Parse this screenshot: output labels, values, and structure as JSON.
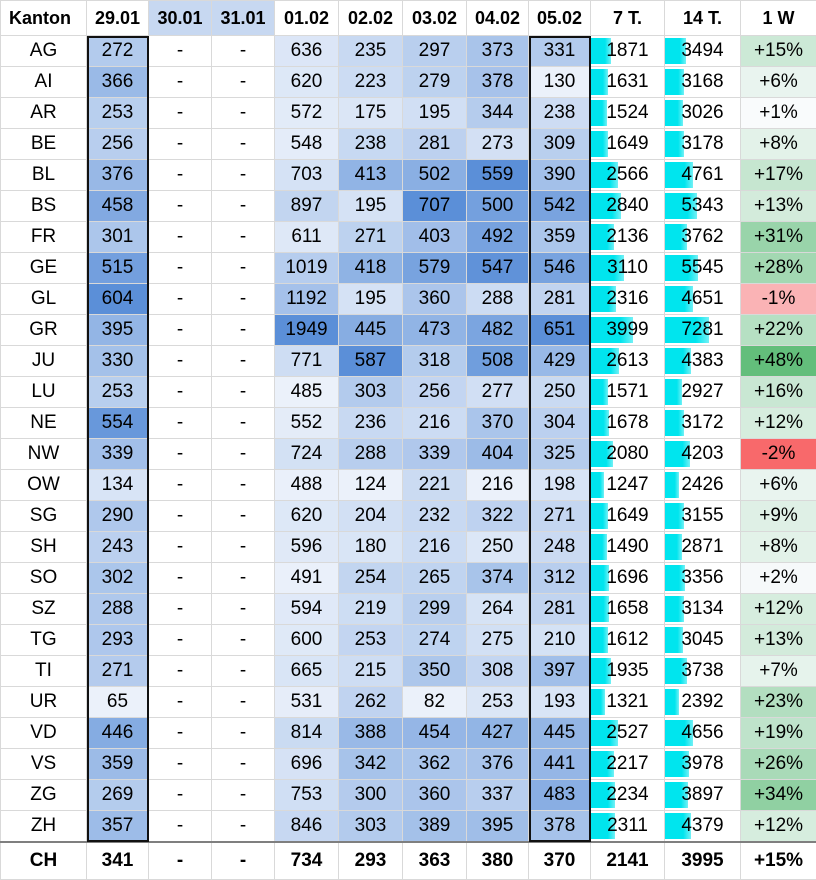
{
  "chart_data": {
    "type": "table",
    "columns": [
      "Kanton",
      "29.01",
      "30.01",
      "31.01",
      "01.02",
      "02.02",
      "03.02",
      "04.02",
      "05.02",
      "7 T.",
      "14 T.",
      "1 W"
    ],
    "rows": [
      [
        "AG",
        272,
        "-",
        "-",
        636,
        235,
        297,
        373,
        331,
        1871,
        3494,
        "+15%"
      ],
      [
        "AI",
        366,
        "-",
        "-",
        620,
        223,
        279,
        378,
        130,
        1631,
        3168,
        "+6%"
      ],
      [
        "AR",
        253,
        "-",
        "-",
        572,
        175,
        195,
        344,
        238,
        1524,
        3026,
        "+1%"
      ],
      [
        "BE",
        256,
        "-",
        "-",
        548,
        238,
        281,
        273,
        309,
        1649,
        3178,
        "+8%"
      ],
      [
        "BL",
        376,
        "-",
        "-",
        703,
        413,
        502,
        559,
        390,
        2566,
        4761,
        "+17%"
      ],
      [
        "BS",
        458,
        "-",
        "-",
        897,
        195,
        707,
        500,
        542,
        2840,
        5343,
        "+13%"
      ],
      [
        "FR",
        301,
        "-",
        "-",
        611,
        271,
        403,
        492,
        359,
        2136,
        3762,
        "+31%"
      ],
      [
        "GE",
        515,
        "-",
        "-",
        1019,
        418,
        579,
        547,
        546,
        3110,
        5545,
        "+28%"
      ],
      [
        "GL",
        604,
        "-",
        "-",
        1192,
        195,
        360,
        288,
        281,
        2316,
        4651,
        "-1%"
      ],
      [
        "GR",
        395,
        "-",
        "-",
        1949,
        445,
        473,
        482,
        651,
        3999,
        7281,
        "+22%"
      ],
      [
        "JU",
        330,
        "-",
        "-",
        771,
        587,
        318,
        508,
        429,
        2613,
        4383,
        "+48%"
      ],
      [
        "LU",
        253,
        "-",
        "-",
        485,
        303,
        256,
        277,
        250,
        1571,
        2927,
        "+16%"
      ],
      [
        "NE",
        554,
        "-",
        "-",
        552,
        236,
        216,
        370,
        304,
        1678,
        3172,
        "+12%"
      ],
      [
        "NW",
        339,
        "-",
        "-",
        724,
        288,
        339,
        404,
        325,
        2080,
        4203,
        "-2%"
      ],
      [
        "OW",
        134,
        "-",
        "-",
        488,
        124,
        221,
        216,
        198,
        1247,
        2426,
        "+6%"
      ],
      [
        "SG",
        290,
        "-",
        "-",
        620,
        204,
        232,
        322,
        271,
        1649,
        3155,
        "+9%"
      ],
      [
        "SH",
        243,
        "-",
        "-",
        596,
        180,
        216,
        250,
        248,
        1490,
        2871,
        "+8%"
      ],
      [
        "SO",
        302,
        "-",
        "-",
        491,
        254,
        265,
        374,
        312,
        1696,
        3356,
        "+2%"
      ],
      [
        "SZ",
        288,
        "-",
        "-",
        594,
        219,
        299,
        264,
        281,
        1658,
        3134,
        "+12%"
      ],
      [
        "TG",
        293,
        "-",
        "-",
        600,
        253,
        274,
        275,
        210,
        1612,
        3045,
        "+13%"
      ],
      [
        "TI",
        271,
        "-",
        "-",
        665,
        215,
        350,
        308,
        397,
        1935,
        3738,
        "+7%"
      ],
      [
        "UR",
        65,
        "-",
        "-",
        531,
        262,
        82,
        253,
        193,
        1321,
        2392,
        "+23%"
      ],
      [
        "VD",
        446,
        "-",
        "-",
        814,
        388,
        454,
        427,
        445,
        2527,
        4656,
        "+19%"
      ],
      [
        "VS",
        359,
        "-",
        "-",
        696,
        342,
        362,
        376,
        441,
        2217,
        3978,
        "+26%"
      ],
      [
        "ZG",
        269,
        "-",
        "-",
        753,
        300,
        360,
        337,
        483,
        2234,
        3897,
        "+34%"
      ],
      [
        "ZH",
        357,
        "-",
        "-",
        846,
        303,
        389,
        395,
        378,
        2311,
        4379,
        "+12%"
      ]
    ],
    "total": [
      "CH",
      341,
      "-",
      "-",
      734,
      293,
      363,
      380,
      370,
      2141,
      3995,
      "+15%"
    ],
    "highlighted_columns": [
      "29.01",
      "05.02"
    ],
    "colors": {
      "heat_low": "#f7f9fd",
      "heat_high": "#5b8fd8",
      "header_weekend": "#c7d8f1",
      "data_bar": "#00e5ee",
      "pct_positive": "#63be7b",
      "pct_negative": "#f8696b",
      "pct_neutral": "#fcfcff"
    }
  }
}
